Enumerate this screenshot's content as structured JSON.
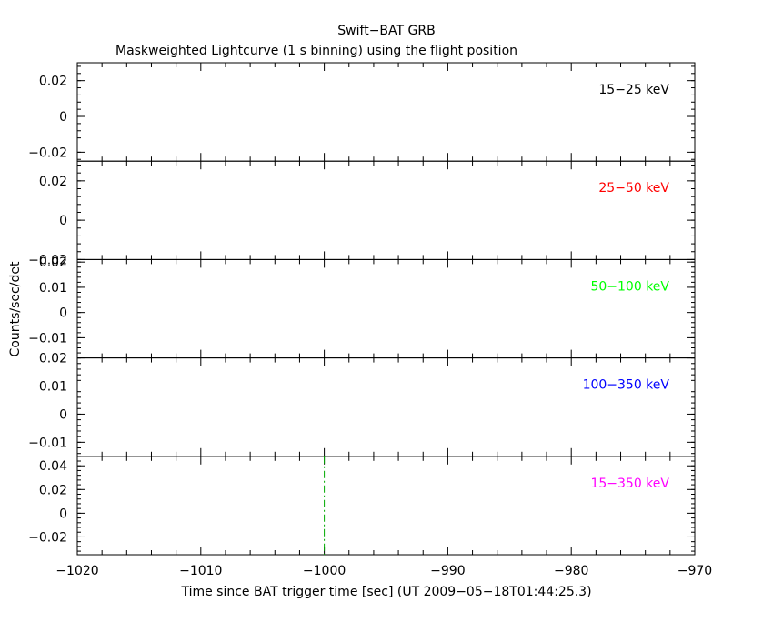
{
  "title": "Swift−BAT GRB",
  "subtitle": "Maskweighted Lightcurve (1 s binning) using the flight position",
  "ylabel": "Counts/sec/det",
  "xlabel": "Time since BAT trigger time [sec] (UT 2009−05−18T01:44:25.3)",
  "chart_data": {
    "type": "line",
    "title": "Swift−BAT GRB",
    "subtitle": "Maskweighted Lightcurve (1 s binning) using the flight position",
    "xlabel": "Time since BAT trigger time [sec] (UT 2009−05−18T01:44:25.3)",
    "ylabel": "Counts/sec/det",
    "xlim": [
      -1020,
      -970
    ],
    "xticks": [
      -1020,
      -1010,
      -1000,
      -990,
      -980,
      -970
    ],
    "xtick_labels": [
      "−1020",
      "−1010",
      "−1000",
      "−990",
      "−980",
      "−970"
    ],
    "grid": false,
    "panels": [
      {
        "name": "15−25 keV",
        "color": "#000000",
        "ylim": [
          -0.025,
          0.03
        ],
        "yticks": [
          0.02,
          0,
          -0.02
        ],
        "ytick_labels": [
          "0.02",
          "0",
          "−0.02"
        ],
        "x": [
          -1000
        ],
        "y": [
          0
        ]
      },
      {
        "name": "25−50 keV",
        "color": "#ff0000",
        "ylim": [
          -0.02,
          0.03
        ],
        "yticks": [
          0.02,
          0,
          -0.02
        ],
        "ytick_labels": [
          "0.02",
          "0",
          "−0.02"
        ],
        "x": [
          -1000
        ],
        "y": [
          0
        ]
      },
      {
        "name": "50−100 keV",
        "color": "#00ff00",
        "ylim": [
          -0.018,
          0.021
        ],
        "yticks": [
          0.02,
          0.01,
          0,
          -0.01
        ],
        "ytick_labels": [
          "0.02",
          "0.01",
          "0",
          "−0.01"
        ],
        "x": [
          -1000
        ],
        "y": [
          0
        ]
      },
      {
        "name": "100−350 keV",
        "color": "#0000ff",
        "ylim": [
          -0.015,
          0.02
        ],
        "yticks": [
          0.02,
          0.01,
          0,
          -0.01
        ],
        "ytick_labels": [
          "0.02",
          "0.01",
          "0",
          "−0.01"
        ],
        "x": [
          -1000
        ],
        "y": [
          0
        ]
      },
      {
        "name": "15−350 keV",
        "color": "#ff00ff",
        "ylim": [
          -0.035,
          0.048
        ],
        "yticks": [
          0.04,
          0.02,
          0,
          -0.02
        ],
        "ytick_labels": [
          "0.04",
          "0.02",
          "0",
          "−0.02"
        ],
        "x": [
          -1000
        ],
        "y": [
          0
        ]
      }
    ],
    "trigger_marker": {
      "x": -1000,
      "color": "#00aa00",
      "style": "dash-dot",
      "panel": "15−350 keV"
    }
  }
}
